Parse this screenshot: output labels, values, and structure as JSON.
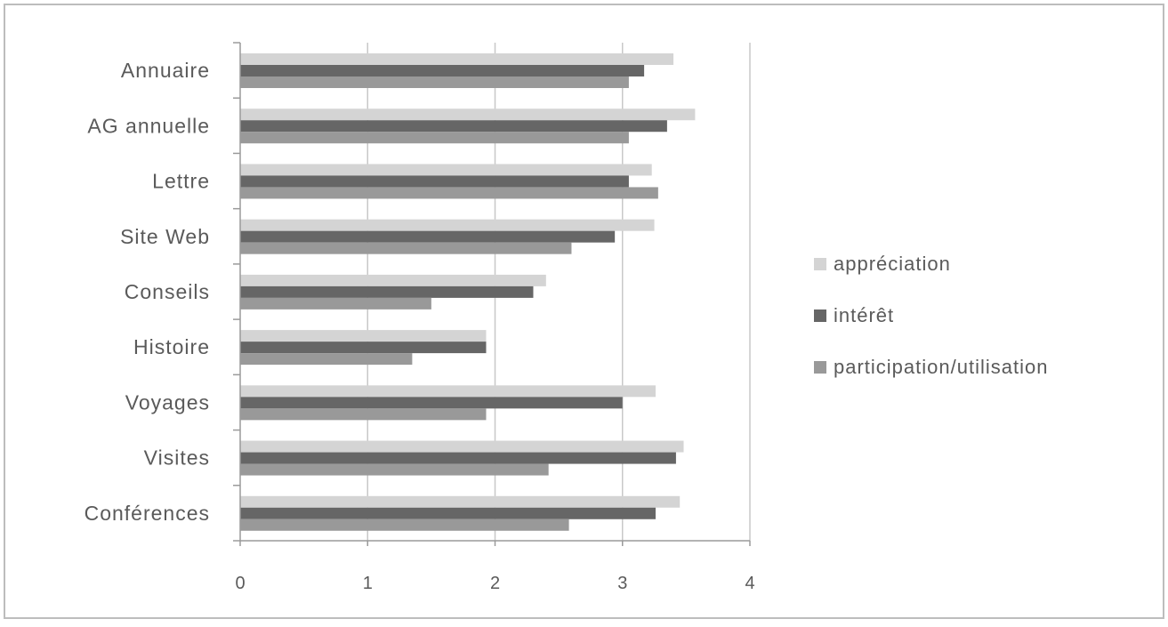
{
  "chart_data": {
    "type": "bar",
    "orientation": "horizontal",
    "categories": [
      "Annuaire",
      "AG annuelle",
      "Lettre",
      "Site Web",
      "Conseils",
      "Histoire",
      "Voyages",
      "Visites",
      "Conférences"
    ],
    "series": [
      {
        "name": "appréciation",
        "color": "#d4d4d4",
        "values": [
          3.4,
          3.57,
          3.23,
          3.25,
          2.4,
          1.93,
          3.26,
          3.48,
          3.45
        ]
      },
      {
        "name": "intérêt",
        "color": "#666666",
        "values": [
          3.17,
          3.35,
          3.05,
          2.94,
          2.3,
          1.93,
          3.0,
          3.42,
          3.26
        ]
      },
      {
        "name": "participation/utilisation",
        "color": "#999999",
        "values": [
          3.05,
          3.05,
          3.28,
          2.6,
          1.5,
          1.35,
          1.93,
          2.42,
          2.58
        ]
      }
    ],
    "x_ticks": [
      "0",
      "1",
      "2",
      "3",
      "4"
    ],
    "xlim": [
      0,
      4
    ],
    "gridlines": "vertical",
    "legend_position": "right",
    "title": "",
    "xlabel": "",
    "ylabel": ""
  }
}
